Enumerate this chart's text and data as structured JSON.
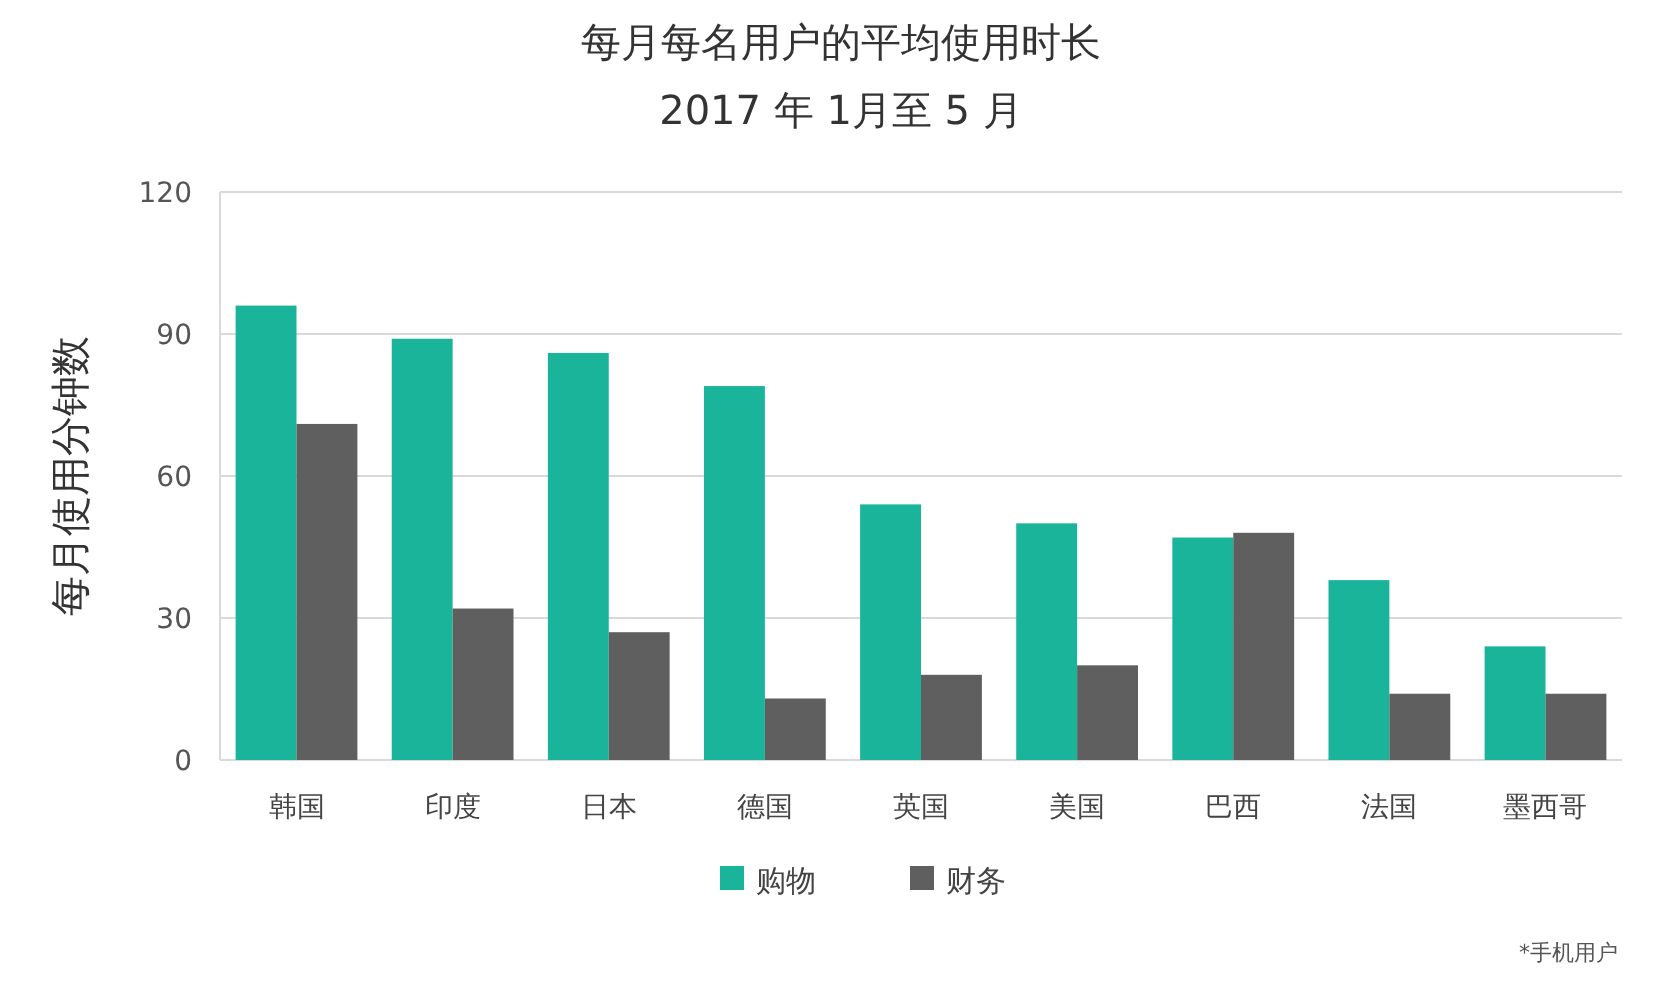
{
  "chart_data": {
    "type": "bar",
    "title": "每月每名用户的平均使用时长",
    "subtitle": "2017 年 1月至 5 月",
    "ylabel": "每月使用分钟数",
    "categories": [
      "韩国",
      "印度",
      "日本",
      "德国",
      "英国",
      "美国",
      "巴西",
      "法国",
      "墨西哥"
    ],
    "series": [
      {
        "name": "购物",
        "color": "#1ab49a",
        "values": [
          96,
          89,
          86,
          79,
          54,
          50,
          47,
          38,
          24
        ]
      },
      {
        "name": "财务",
        "color": "#5f5f5f",
        "values": [
          71,
          32,
          27,
          13,
          18,
          20,
          48,
          14,
          14
        ]
      }
    ],
    "ylim": [
      0,
      120
    ],
    "yticks": [
      0,
      30,
      60,
      90,
      120
    ],
    "grid": "y",
    "legend": "bottom",
    "annotations": [
      "*手机用户"
    ]
  }
}
